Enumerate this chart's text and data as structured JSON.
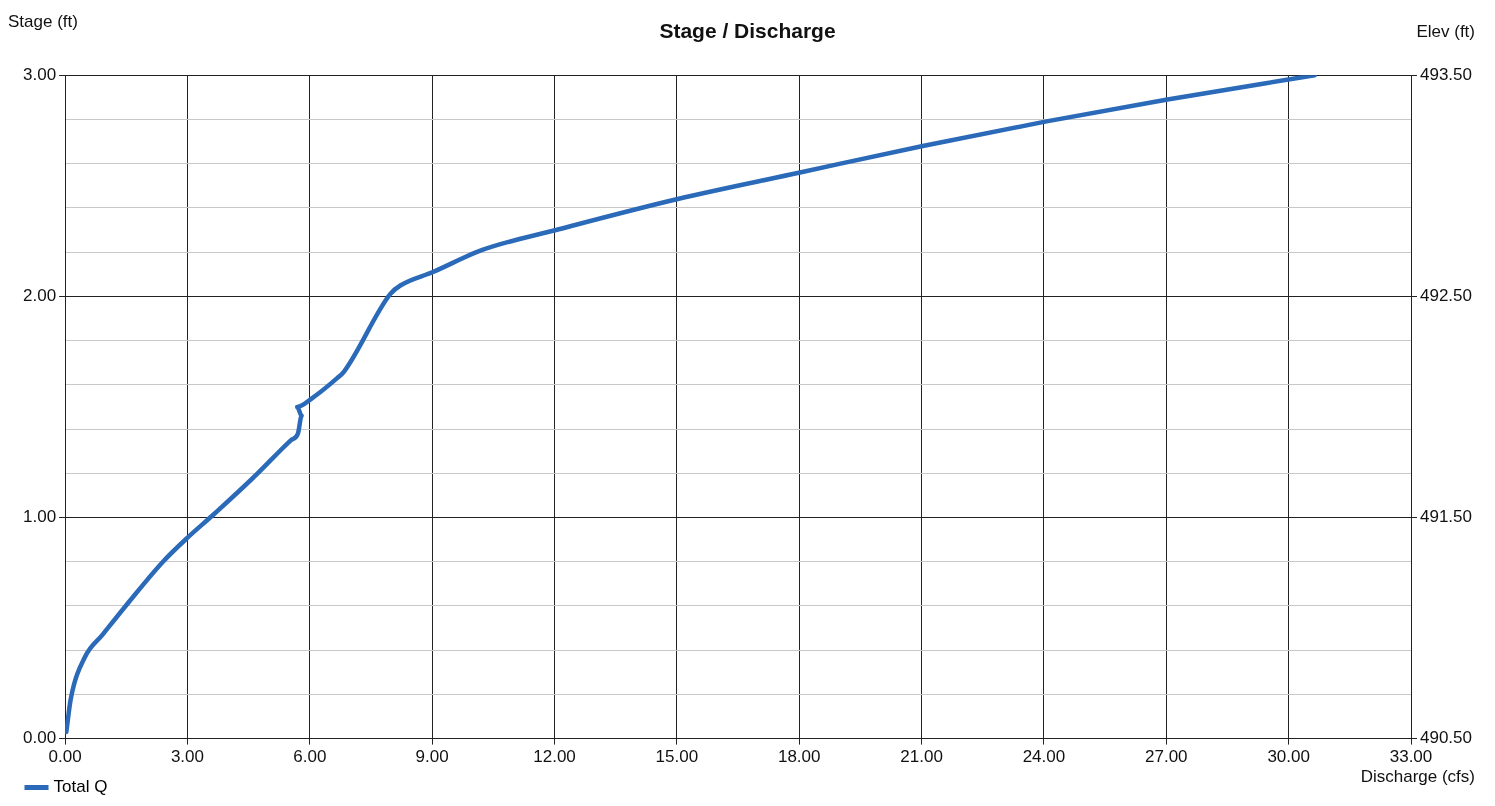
{
  "chart_data": {
    "type": "line",
    "title": "Stage / Discharge",
    "xlabel": "Discharge (cfs)",
    "ylabel": "Stage (ft)",
    "y2label": "Elev (ft)",
    "xlim": [
      0,
      33
    ],
    "xticks": [
      {
        "value": 0,
        "label": "0.00"
      },
      {
        "value": 3,
        "label": "3.00"
      },
      {
        "value": 6,
        "label": "6.00"
      },
      {
        "value": 9,
        "label": "9.00"
      },
      {
        "value": 12,
        "label": "12.00"
      },
      {
        "value": 15,
        "label": "15.00"
      },
      {
        "value": 18,
        "label": "18.00"
      },
      {
        "value": 21,
        "label": "21.00"
      },
      {
        "value": 24,
        "label": "24.00"
      },
      {
        "value": 27,
        "label": "27.00"
      },
      {
        "value": 30,
        "label": "30.00"
      },
      {
        "value": 33,
        "label": "33.00"
      }
    ],
    "ylim": [
      0,
      3
    ],
    "yticks": [
      {
        "value": 0,
        "label": "0.00"
      },
      {
        "value": 0.2,
        "label": null
      },
      {
        "value": 0.4,
        "label": null
      },
      {
        "value": 0.6,
        "label": null
      },
      {
        "value": 0.8,
        "label": null
      },
      {
        "value": 1,
        "label": "1.00"
      },
      {
        "value": 1.2,
        "label": null
      },
      {
        "value": 1.4,
        "label": null
      },
      {
        "value": 1.6,
        "label": null
      },
      {
        "value": 1.8,
        "label": null
      },
      {
        "value": 2,
        "label": "2.00"
      },
      {
        "value": 2.2,
        "label": null
      },
      {
        "value": 2.4,
        "label": null
      },
      {
        "value": 2.6,
        "label": null
      },
      {
        "value": 2.8,
        "label": null
      },
      {
        "value": 3,
        "label": "3.00"
      }
    ],
    "y2lim": [
      490.5,
      493.5
    ],
    "y2ticks": [
      {
        "value": 490.5,
        "label": "490.50"
      },
      {
        "value": 491.5,
        "label": "491.50"
      },
      {
        "value": 492.5,
        "label": "492.50"
      },
      {
        "value": 493.5,
        "label": "493.50"
      }
    ],
    "grid": true,
    "legend": "bottom left",
    "marker": "none",
    "line_style": "solid",
    "series": [
      {
        "name": "Total Q",
        "color": "#2a6ab8",
        "x": [
          0.03,
          0.14,
          0.49,
          0.92,
          1.53,
          2.4,
          3.01,
          3.62,
          4.67,
          5.54,
          5.71,
          5.8,
          5.69,
          6.06,
          6.67,
          6.84,
          7.97,
          8.23,
          9.02,
          10.23,
          12.04,
          15.02,
          18.02,
          21.03,
          24.03,
          27.03,
          30.64
        ],
        "values": [
          0.03,
          0.18,
          0.37,
          0.47,
          0.61,
          0.8,
          0.91,
          1.01,
          1.19,
          1.35,
          1.38,
          1.46,
          1.5,
          1.54,
          1.63,
          1.66,
          2.01,
          2.05,
          2.11,
          2.21,
          2.3,
          2.44,
          2.56,
          2.68,
          2.79,
          2.89,
          3.0
        ]
      }
    ]
  }
}
